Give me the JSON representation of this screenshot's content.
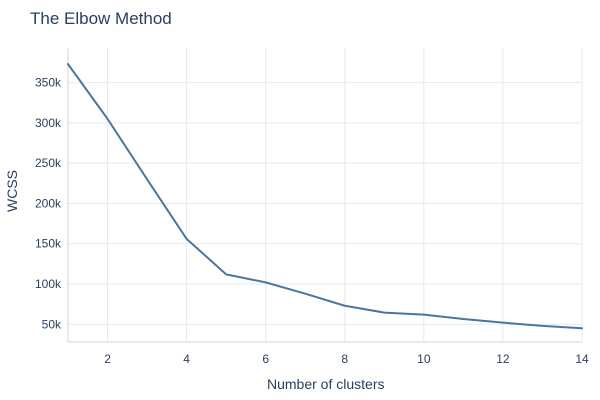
{
  "chart_data": {
    "type": "line",
    "title": "The Elbow Method",
    "xlabel": "Number of clusters",
    "ylabel": "WCSS",
    "x": [
      1,
      2,
      3,
      4,
      5,
      6,
      7,
      8,
      9,
      10,
      11,
      12,
      13,
      14
    ],
    "series": [
      {
        "values": [
          373000,
          305000,
          230000,
          156000,
          112000,
          102000,
          88000,
          73000,
          64500,
          62000,
          56500,
          52000,
          48000,
          45000
        ],
        "color": "#4a76a0"
      }
    ],
    "xlim": [
      1,
      14
    ],
    "ylim": [
      28000,
      393000
    ],
    "x_ticks": [
      2,
      4,
      6,
      8,
      10,
      12,
      14
    ],
    "x_tick_labels": [
      "2",
      "4",
      "6",
      "8",
      "10",
      "12",
      "14"
    ],
    "y_ticks": [
      50000,
      100000,
      150000,
      200000,
      250000,
      300000,
      350000
    ],
    "y_tick_labels": [
      "50k",
      "100k",
      "150k",
      "200k",
      "250k",
      "300k",
      "350k"
    ],
    "grid": true,
    "legend": false
  }
}
